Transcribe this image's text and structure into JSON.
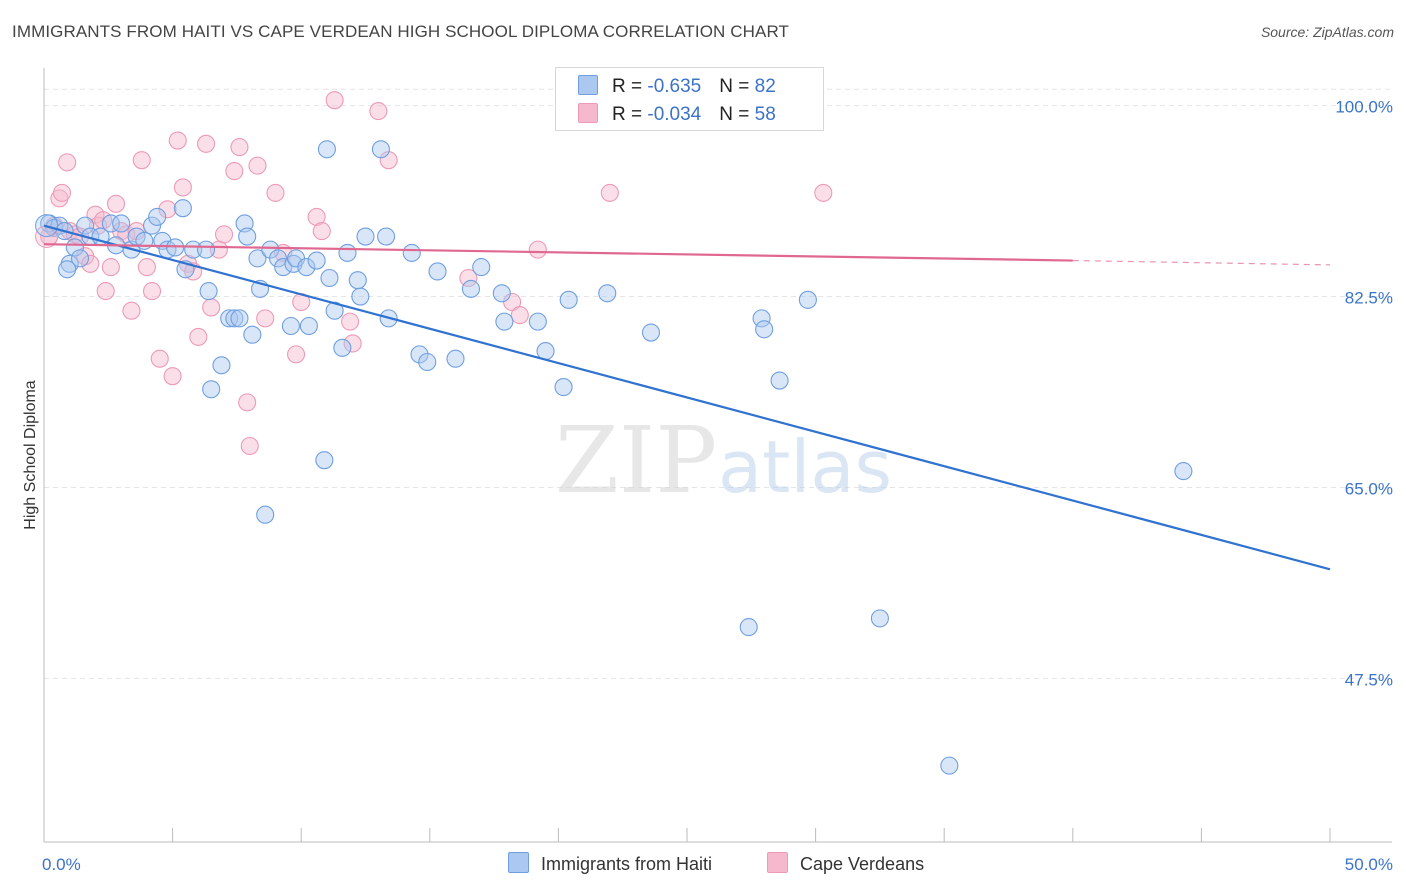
{
  "header": {
    "title": "IMMIGRANTS FROM HAITI VS CAPE VERDEAN HIGH SCHOOL DIPLOMA CORRELATION CHART",
    "source": "Source: ZipAtlas.com"
  },
  "legend": {
    "rows": [
      {
        "r_label": "R = ",
        "r_value": "-0.635",
        "n_label": "N = ",
        "n_value": "82",
        "color": "#aac8f0"
      },
      {
        "r_label": "R = ",
        "r_value": "-0.034",
        "n_label": "N = ",
        "n_value": "58",
        "color": "#f5b8cc"
      }
    ]
  },
  "bottom_legend": {
    "items": [
      {
        "label": "Immigrants from Haiti",
        "color": "#aac8f0"
      },
      {
        "label": "Cape Verdeans",
        "color": "#f5b8cc"
      }
    ]
  },
  "watermark": {
    "part1": "ZIP",
    "part2": "atlas"
  },
  "chart_data": {
    "type": "scatter",
    "title": "IMMIGRANTS FROM HAITI VS CAPE VERDEAN HIGH SCHOOL DIPLOMA CORRELATION CHART",
    "ylabel": "High School Diploma",
    "xlabel": "",
    "xlim": [
      0,
      50
    ],
    "ylim": [
      32.5,
      104
    ],
    "x_tick_labels": [
      {
        "value": 0,
        "label": "0.0%"
      },
      {
        "value": 50,
        "label": "50.0%"
      }
    ],
    "y_tick_labels": [
      {
        "value": 100,
        "label": "100.0%"
      },
      {
        "value": 82.5,
        "label": "82.5%"
      },
      {
        "value": 65,
        "label": "65.0%"
      },
      {
        "value": 47.5,
        "label": "47.5%"
      }
    ],
    "grid": true,
    "legend_position": "top-center",
    "series": [
      {
        "name": "Immigrants from Haiti",
        "color": "#6f9fe0",
        "fill": "#aac8f0",
        "line_color": "#2f72d0",
        "r": -0.635,
        "n": 82,
        "trend": {
          "x": [
            0,
            50
          ],
          "y": [
            89.0,
            57.5
          ]
        },
        "points": [
          [
            0.2,
            89.2
          ],
          [
            0.4,
            88.8
          ],
          [
            0.6,
            89.0
          ],
          [
            0.8,
            88.5
          ],
          [
            1.0,
            85.5
          ],
          [
            1.2,
            87.0
          ],
          [
            1.4,
            86.0
          ],
          [
            1.6,
            89.0
          ],
          [
            1.8,
            88.0
          ],
          [
            2.2,
            88.0
          ],
          [
            2.6,
            89.2
          ],
          [
            2.8,
            87.2
          ],
          [
            3.0,
            89.2
          ],
          [
            3.4,
            86.8
          ],
          [
            3.6,
            88.0
          ],
          [
            3.9,
            87.6
          ],
          [
            4.2,
            89.0
          ],
          [
            4.4,
            89.8
          ],
          [
            4.6,
            87.6
          ],
          [
            4.8,
            86.8
          ],
          [
            5.1,
            87.0
          ],
          [
            5.5,
            85.0
          ],
          [
            5.4,
            90.6
          ],
          [
            5.8,
            86.8
          ],
          [
            6.3,
            86.8
          ],
          [
            6.4,
            83.0
          ],
          [
            6.5,
            74.0
          ],
          [
            6.9,
            76.2
          ],
          [
            7.2,
            80.5
          ],
          [
            7.4,
            80.5
          ],
          [
            7.6,
            80.5
          ],
          [
            7.8,
            89.2
          ],
          [
            7.9,
            88.0
          ],
          [
            8.1,
            79.0
          ],
          [
            8.3,
            86.0
          ],
          [
            8.4,
            83.2
          ],
          [
            8.6,
            62.5
          ],
          [
            8.8,
            86.8
          ],
          [
            9.1,
            86.0
          ],
          [
            9.3,
            85.2
          ],
          [
            9.6,
            79.8
          ],
          [
            9.7,
            85.5
          ],
          [
            9.8,
            86.0
          ],
          [
            10.2,
            85.2
          ],
          [
            10.3,
            79.8
          ],
          [
            10.6,
            85.8
          ],
          [
            10.9,
            67.5
          ],
          [
            11.1,
            84.2
          ],
          [
            11.0,
            96.0
          ],
          [
            11.3,
            81.2
          ],
          [
            11.6,
            77.8
          ],
          [
            11.8,
            86.5
          ],
          [
            12.3,
            82.5
          ],
          [
            12.2,
            84.0
          ],
          [
            12.5,
            88.0
          ],
          [
            13.1,
            96.0
          ],
          [
            13.4,
            80.5
          ],
          [
            13.3,
            88.0
          ],
          [
            14.3,
            86.5
          ],
          [
            14.6,
            77.2
          ],
          [
            14.9,
            76.5
          ],
          [
            15.3,
            84.8
          ],
          [
            16.0,
            76.8
          ],
          [
            16.6,
            83.2
          ],
          [
            17.0,
            85.2
          ],
          [
            17.8,
            82.8
          ],
          [
            17.9,
            80.2
          ],
          [
            19.2,
            80.2
          ],
          [
            19.5,
            77.5
          ],
          [
            20.2,
            74.2
          ],
          [
            20.4,
            82.2
          ],
          [
            21.9,
            82.8
          ],
          [
            23.6,
            79.2
          ],
          [
            27.4,
            52.2
          ],
          [
            27.9,
            80.5
          ],
          [
            28.0,
            79.5
          ],
          [
            28.6,
            74.8
          ],
          [
            29.7,
            82.2
          ],
          [
            32.5,
            53.0
          ],
          [
            35.2,
            39.5
          ],
          [
            44.3,
            66.5
          ],
          [
            0.9,
            85.0
          ]
        ]
      },
      {
        "name": "Cape Verdeans",
        "color": "#ee9ab5",
        "fill": "#f5b8cc",
        "line_color": "#e06890",
        "r": -0.034,
        "n": 58,
        "trend": {
          "x": [
            0,
            40
          ],
          "y": [
            87.3,
            85.8
          ]
        },
        "trend_dashed": {
          "x": [
            40,
            50
          ],
          "y": [
            85.8,
            85.4
          ]
        },
        "points": [
          [
            0.2,
            88.0
          ],
          [
            0.4,
            89.0
          ],
          [
            0.6,
            91.5
          ],
          [
            0.7,
            92.0
          ],
          [
            0.9,
            94.8
          ],
          [
            1.0,
            88.5
          ],
          [
            1.2,
            88.2
          ],
          [
            1.4,
            88.0
          ],
          [
            1.6,
            86.2
          ],
          [
            1.8,
            85.5
          ],
          [
            2.0,
            90.0
          ],
          [
            2.1,
            89.0
          ],
          [
            2.3,
            89.5
          ],
          [
            2.4,
            83.0
          ],
          [
            2.6,
            85.2
          ],
          [
            2.8,
            91.0
          ],
          [
            3.0,
            88.5
          ],
          [
            3.2,
            88.2
          ],
          [
            3.4,
            81.2
          ],
          [
            3.6,
            88.5
          ],
          [
            3.8,
            95.0
          ],
          [
            4.0,
            85.2
          ],
          [
            4.2,
            83.0
          ],
          [
            4.5,
            76.8
          ],
          [
            4.8,
            90.5
          ],
          [
            5.0,
            75.2
          ],
          [
            5.2,
            96.8
          ],
          [
            5.4,
            92.5
          ],
          [
            5.6,
            85.5
          ],
          [
            5.8,
            84.8
          ],
          [
            6.0,
            78.8
          ],
          [
            6.3,
            96.5
          ],
          [
            6.5,
            81.5
          ],
          [
            6.8,
            86.8
          ],
          [
            7.0,
            88.2
          ],
          [
            7.4,
            94.0
          ],
          [
            7.6,
            96.2
          ],
          [
            7.9,
            72.8
          ],
          [
            8.0,
            68.8
          ],
          [
            8.3,
            94.5
          ],
          [
            8.6,
            80.5
          ],
          [
            9.0,
            92.0
          ],
          [
            9.3,
            86.5
          ],
          [
            9.8,
            77.2
          ],
          [
            10.0,
            82.0
          ],
          [
            10.6,
            89.8
          ],
          [
            10.8,
            88.5
          ],
          [
            11.3,
            100.5
          ],
          [
            11.9,
            80.2
          ],
          [
            12.0,
            78.2
          ],
          [
            13.0,
            99.5
          ],
          [
            13.4,
            95.0
          ],
          [
            16.5,
            84.2
          ],
          [
            18.2,
            82.0
          ],
          [
            18.5,
            80.8
          ],
          [
            19.2,
            86.8
          ],
          [
            22.0,
            92.0
          ],
          [
            30.3,
            92.0
          ]
        ]
      }
    ]
  }
}
